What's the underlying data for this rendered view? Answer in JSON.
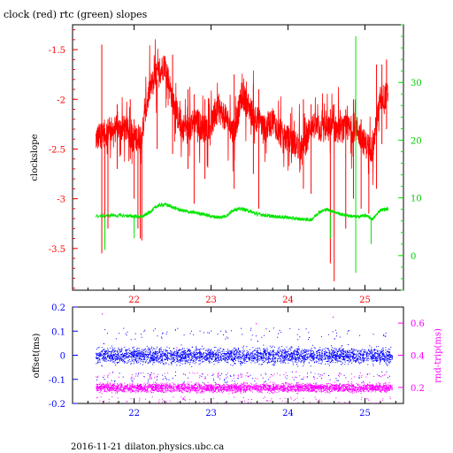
{
  "title": "clock (red) rtc (green) slopes",
  "footer": "2016-11-21  dilaton.physics.ubc.ca",
  "colors": {
    "clock": "#ff0000",
    "rtc": "#00e600",
    "offset": "#0000ff",
    "rndtrip": "#ff00ff",
    "axis_black": "#000000"
  },
  "chart_data": [
    {
      "type": "line",
      "title": "clock (red) rtc (green) slopes",
      "xlim": [
        21.2,
        25.5
      ],
      "x_ticks": [
        22,
        23,
        24,
        25
      ],
      "x_tick_labels": [
        "22",
        "23",
        "24",
        "25"
      ],
      "ylabel": "clockslope",
      "ylim": [
        -3.92,
        -1.25
      ],
      "y_ticks": [
        -3.5,
        -3,
        -2.5,
        -2,
        -1.5
      ],
      "y_tick_labels": [
        "-3.5",
        "-3",
        "-2.5",
        "-2",
        "-1.5"
      ],
      "y2lim": [
        -6,
        40
      ],
      "y2_ticks": [
        0,
        10,
        20,
        30
      ],
      "y2_tick_labels": [
        "0",
        "10",
        "20",
        "30"
      ],
      "series": [
        {
          "name": "clock",
          "axis": "left",
          "color": "#ff0000",
          "x": [
            21.5,
            21.6,
            21.7,
            21.8,
            21.9,
            22.0,
            22.1,
            22.2,
            22.3,
            22.4,
            22.5,
            22.6,
            22.7,
            22.8,
            22.9,
            23.0,
            23.1,
            23.2,
            23.3,
            23.4,
            23.5,
            23.6,
            23.7,
            23.8,
            23.9,
            24.0,
            24.1,
            24.2,
            24.3,
            24.4,
            24.5,
            24.6,
            24.7,
            24.8,
            24.9,
            25.0,
            25.1,
            25.2,
            25.3
          ],
          "y": [
            -2.4,
            -2.35,
            -2.3,
            -2.3,
            -2.3,
            -2.4,
            -2.35,
            -1.9,
            -1.75,
            -1.65,
            -2.0,
            -2.25,
            -2.3,
            -2.2,
            -2.3,
            -2.25,
            -2.1,
            -2.2,
            -2.35,
            -1.95,
            -2.1,
            -2.2,
            -2.3,
            -2.2,
            -2.35,
            -2.4,
            -2.45,
            -2.5,
            -2.25,
            -2.3,
            -2.3,
            -2.3,
            -2.3,
            -2.3,
            -2.3,
            -2.45,
            -2.5,
            -2.0,
            -1.95
          ],
          "spikes": [
            {
              "x": 21.58,
              "y": [
                -3.55,
                -1.45
              ]
            },
            {
              "x": 21.62,
              "y": [
                -3.45,
                -2.45
              ]
            },
            {
              "x": 21.66,
              "y": [
                -3.3,
                -2.2
              ]
            },
            {
              "x": 21.78,
              "y": [
                -2.7,
                -2.05
              ]
            },
            {
              "x": 21.95,
              "y": [
                -2.6,
                -2.0
              ]
            },
            {
              "x": 22.0,
              "y": [
                -3.0,
                -2.2
              ]
            },
            {
              "x": 22.05,
              "y": [
                -3.3,
                -2.3
              ]
            },
            {
              "x": 22.08,
              "y": [
                -3.4,
                -2.4
              ]
            },
            {
              "x": 22.1,
              "y": [
                -3.42,
                -2.35
              ]
            },
            {
              "x": 22.3,
              "y": [
                -2.5,
                -1.8
              ]
            },
            {
              "x": 22.5,
              "y": [
                -2.55,
                -1.55
              ]
            },
            {
              "x": 22.7,
              "y": [
                -2.7,
                -1.9
              ]
            },
            {
              "x": 22.78,
              "y": [
                -3.05,
                -1.95
              ]
            },
            {
              "x": 22.92,
              "y": [
                -2.8,
                -2.0
              ]
            },
            {
              "x": 23.3,
              "y": [
                -2.9,
                -1.75
              ]
            },
            {
              "x": 23.55,
              "y": [
                -2.75,
                -1.85
              ]
            },
            {
              "x": 23.62,
              "y": [
                -3.1,
                -1.9
              ]
            },
            {
              "x": 24.2,
              "y": [
                -2.9,
                -2.0
              ]
            },
            {
              "x": 24.3,
              "y": [
                -2.95,
                -2.05
              ]
            },
            {
              "x": 24.55,
              "y": [
                -3.65,
                -2.1
              ]
            },
            {
              "x": 24.6,
              "y": [
                -3.83,
                -2.05
              ]
            },
            {
              "x": 24.75,
              "y": [
                -3.3,
                -2.1
              ]
            },
            {
              "x": 24.85,
              "y": [
                -3.0,
                -2.0
              ]
            },
            {
              "x": 24.95,
              "y": [
                -3.1,
                -2.2
              ]
            },
            {
              "x": 25.05,
              "y": [
                -3.15,
                -2.4
              ]
            },
            {
              "x": 25.15,
              "y": [
                -2.9,
                -1.65
              ]
            },
            {
              "x": 25.22,
              "y": [
                -2.45,
                -1.65
              ]
            },
            {
              "x": 25.28,
              "y": [
                -2.3,
                -1.6
              ]
            }
          ]
        },
        {
          "name": "rtc",
          "axis": "right",
          "color": "#00e600",
          "x": [
            21.5,
            21.7,
            21.9,
            22.0,
            22.1,
            22.2,
            22.3,
            22.4,
            22.5,
            22.6,
            22.7,
            22.8,
            22.9,
            23.0,
            23.1,
            23.2,
            23.3,
            23.4,
            23.5,
            23.6,
            23.7,
            23.8,
            23.9,
            24.0,
            24.1,
            24.2,
            24.3,
            24.4,
            24.5,
            24.6,
            24.7,
            24.8,
            24.9,
            25.0,
            25.1,
            25.2,
            25.3
          ],
          "y": [
            6.8,
            7.0,
            6.9,
            6.8,
            6.7,
            7.5,
            8.6,
            8.9,
            8.4,
            7.9,
            7.6,
            7.4,
            7.2,
            6.8,
            6.6,
            6.9,
            8.0,
            8.1,
            7.7,
            7.2,
            7.0,
            6.8,
            6.7,
            6.6,
            6.4,
            6.3,
            6.2,
            7.5,
            8.0,
            7.6,
            7.1,
            6.9,
            6.7,
            7.0,
            6.3,
            7.9,
            8.1
          ],
          "spikes": [
            {
              "x": 21.62,
              "y": [
                1.0,
                6.5
              ]
            },
            {
              "x": 22.0,
              "y": [
                3.0,
                6.5
              ]
            },
            {
              "x": 24.55,
              "y": [
                3.0,
                7.0
              ]
            },
            {
              "x": 24.88,
              "y": [
                -3.0,
                38.0
              ]
            },
            {
              "x": 25.08,
              "y": [
                2.0,
                6.5
              ]
            }
          ]
        }
      ]
    },
    {
      "type": "scatter",
      "xlim": [
        21.2,
        25.5
      ],
      "x_ticks": [
        22,
        23,
        24,
        25
      ],
      "x_tick_labels": [
        "22",
        "23",
        "24",
        "25"
      ],
      "ylabel": "offset(ms)",
      "ylim": [
        -0.2,
        0.2
      ],
      "y_ticks": [
        -0.2,
        -0.1,
        0,
        0.1,
        0.2
      ],
      "y_tick_labels": [
        "-0.2",
        "-0.1",
        "0",
        "0.1",
        "0.2"
      ],
      "y2label": "rnd-trip(ms)",
      "y2lim": [
        0.1,
        0.7
      ],
      "y2_ticks": [
        0.2,
        0.4,
        0.6
      ],
      "y2_tick_labels": [
        "0.2",
        "0.4",
        "0.6"
      ],
      "series": [
        {
          "name": "offset",
          "axis": "left",
          "color": "#0000ff",
          "x_range": [
            21.5,
            25.35
          ],
          "center": 0.0,
          "spread": 0.03,
          "outliers": [
            {
              "x": 21.6,
              "y": 0.05
            },
            {
              "x": 22.2,
              "y": -0.08
            },
            {
              "x": 23.6,
              "y": 0.06
            },
            {
              "x": 24.6,
              "y": 0.07
            }
          ]
        },
        {
          "name": "rnd-trip",
          "axis": "right",
          "color": "#ff00ff",
          "x_range": [
            21.5,
            25.35
          ],
          "center": 0.2,
          "spread": 0.025,
          "outliers": [
            {
              "x": 21.58,
              "y": 0.66
            },
            {
              "x": 22.55,
              "y": 0.45
            },
            {
              "x": 23.58,
              "y": 0.6
            },
            {
              "x": 24.58,
              "y": 0.64
            },
            {
              "x": 24.1,
              "y": 0.3
            },
            {
              "x": 25.2,
              "y": 0.27
            }
          ]
        }
      ]
    }
  ]
}
